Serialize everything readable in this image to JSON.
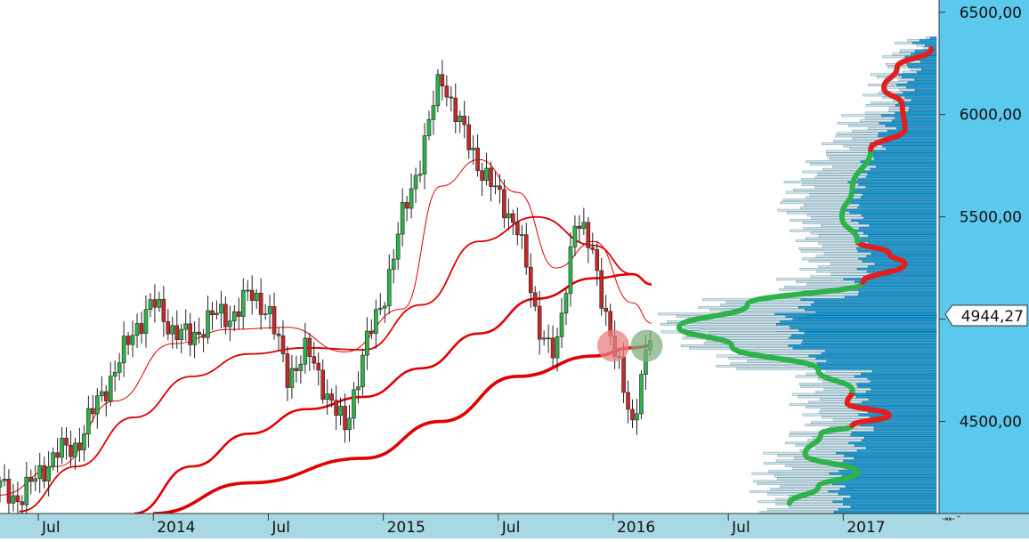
{
  "chart_data": {
    "type": "candlestick",
    "instrument_last_value": "4944,27",
    "y_axis": {
      "tick_labels": [
        "6500,00",
        "6000,00",
        "5500,00",
        "5000,00",
        "4500,00"
      ],
      "ticks": [
        6500,
        6000,
        5500,
        5000,
        4500
      ],
      "ylim": [
        4050,
        6560
      ],
      "last_value": 4944.27
    },
    "x_axis": {
      "tick_labels": [
        "Jul",
        "2014",
        "Jul",
        "2015",
        "Jul",
        "2016",
        "Jul",
        "2017"
      ],
      "ticks": [
        "2013-07",
        "2014-01",
        "2014-07",
        "2015-01",
        "2015-07",
        "2016-01",
        "2016-07",
        "2017-01"
      ],
      "xlim": [
        "2013-05",
        "2017-06"
      ]
    },
    "weekly_close_path": [
      [
        "2013-05",
        4180
      ],
      [
        "2013-06",
        4120
      ],
      [
        "2013-07",
        4240
      ],
      [
        "2013-08",
        4350
      ],
      [
        "2013-09",
        4380
      ],
      [
        "2013-10",
        4580
      ],
      [
        "2013-11",
        4750
      ],
      [
        "2013-12",
        4950
      ],
      [
        "2014-01",
        5080
      ],
      [
        "2014-02",
        4950
      ],
      [
        "2014-03",
        4900
      ],
      [
        "2014-04",
        5020
      ],
      [
        "2014-05",
        5010
      ],
      [
        "2014-06",
        5120
      ],
      [
        "2014-07",
        5050
      ],
      [
        "2014-08",
        4720
      ],
      [
        "2014-09",
        4850
      ],
      [
        "2014-10",
        4650
      ],
      [
        "2014-11",
        4460
      ],
      [
        "2014-12",
        4850
      ],
      [
        "2015-01",
        5100
      ],
      [
        "2015-02",
        5500
      ],
      [
        "2015-03",
        5800
      ],
      [
        "2015-04",
        6200
      ],
      [
        "2015-05",
        5950
      ],
      [
        "2015-06",
        5750
      ],
      [
        "2015-07",
        5600
      ],
      [
        "2015-08",
        5450
      ],
      [
        "2015-09",
        5000
      ],
      [
        "2015-10",
        4800
      ],
      [
        "2015-11",
        5500
      ],
      [
        "2015-12",
        5300
      ],
      [
        "2016-01",
        4850
      ],
      [
        "2016-02",
        4500
      ],
      [
        "2016-03",
        4944
      ]
    ],
    "moving_averages": [
      {
        "period": "thin",
        "color": "#e00000",
        "values": [
          [
            "2013-05",
            4140
          ],
          [
            "2013-08",
            4280
          ],
          [
            "2013-11",
            4600
          ],
          [
            "2014-02",
            4880
          ],
          [
            "2014-05",
            4950
          ],
          [
            "2014-08",
            4960
          ],
          [
            "2014-11",
            4840
          ],
          [
            "2015-02",
            5050
          ],
          [
            "2015-04",
            5650
          ],
          [
            "2015-06",
            5780
          ],
          [
            "2015-08",
            5620
          ],
          [
            "2015-10",
            5250
          ],
          [
            "2015-12",
            5380
          ],
          [
            "2016-02",
            5080
          ],
          [
            "2016-03",
            4980
          ]
        ]
      },
      {
        "period": "medium",
        "color": "#e00000",
        "values": [
          [
            "2013-06",
            4060
          ],
          [
            "2013-09",
            4280
          ],
          [
            "2013-12",
            4520
          ],
          [
            "2014-03",
            4720
          ],
          [
            "2014-06",
            4830
          ],
          [
            "2014-09",
            4860
          ],
          [
            "2014-12",
            4850
          ],
          [
            "2015-03",
            5070
          ],
          [
            "2015-06",
            5380
          ],
          [
            "2015-09",
            5500
          ],
          [
            "2015-12",
            5360
          ],
          [
            "2016-02",
            5220
          ],
          [
            "2016-03",
            5170
          ]
        ]
      },
      {
        "period": "long",
        "color": "#e00000",
        "values": [
          [
            "2013-12",
            4050
          ],
          [
            "2014-03",
            4280
          ],
          [
            "2014-06",
            4440
          ],
          [
            "2014-09",
            4560
          ],
          [
            "2014-12",
            4620
          ],
          [
            "2015-03",
            4760
          ],
          [
            "2015-06",
            4930
          ],
          [
            "2015-09",
            5100
          ],
          [
            "2015-12",
            5200
          ],
          [
            "2016-02",
            5220
          ],
          [
            "2016-03",
            5170
          ]
        ]
      },
      {
        "period": "very-long",
        "color": "#e00000",
        "values": [
          [
            "2014-01",
            4050
          ],
          [
            "2014-06",
            4200
          ],
          [
            "2014-12",
            4320
          ],
          [
            "2015-04",
            4500
          ],
          [
            "2015-08",
            4720
          ],
          [
            "2015-12",
            4820
          ],
          [
            "2016-02",
            4860
          ],
          [
            "2016-03",
            4870
          ]
        ]
      }
    ],
    "markers": [
      {
        "kind": "circle",
        "color": "#e88080",
        "x": "2016-01",
        "y": 4870
      },
      {
        "kind": "circle",
        "color": "#7fb07f",
        "x": "2016-02",
        "y": 4870
      }
    ],
    "volume_profile": {
      "color": "#1a9cd6",
      "light_color": "#cfe6ee",
      "levels": [
        [
          6330,
          0.1
        ],
        [
          6250,
          0.15
        ],
        [
          6150,
          0.2
        ],
        [
          6050,
          0.22
        ],
        [
          5950,
          0.32
        ],
        [
          5850,
          0.38
        ],
        [
          5750,
          0.45
        ],
        [
          5650,
          0.52
        ],
        [
          5550,
          0.55
        ],
        [
          5450,
          0.5
        ],
        [
          5350,
          0.48
        ],
        [
          5250,
          0.46
        ],
        [
          5150,
          0.55
        ],
        [
          5050,
          0.85
        ],
        [
          4980,
          1.0
        ],
        [
          4900,
          0.92
        ],
        [
          4800,
          0.78
        ],
        [
          4700,
          0.48
        ],
        [
          4600,
          0.5
        ],
        [
          4500,
          0.45
        ],
        [
          4400,
          0.52
        ],
        [
          4300,
          0.6
        ],
        [
          4200,
          0.65
        ],
        [
          4100,
          0.62
        ]
      ]
    },
    "profile_curve": [
      {
        "color": "#2db34a",
        "points": [
          [
            4100,
            0.56
          ],
          [
            4180,
            0.45
          ],
          [
            4250,
            0.3
          ],
          [
            4340,
            0.5
          ],
          [
            4440,
            0.44
          ],
          [
            4480,
            0.32
          ]
        ]
      },
      {
        "color": "#e02020",
        "points": [
          [
            4480,
            0.32
          ],
          [
            4530,
            0.18
          ],
          [
            4590,
            0.34
          ],
          [
            4650,
            0.32
          ]
        ]
      },
      {
        "color": "#2db34a",
        "points": [
          [
            4650,
            0.32
          ],
          [
            4750,
            0.45
          ],
          [
            4870,
            0.78
          ],
          [
            4960,
            0.98
          ],
          [
            5070,
            0.72
          ],
          [
            5180,
            0.28
          ]
        ]
      },
      {
        "color": "#e02020",
        "points": [
          [
            5180,
            0.28
          ],
          [
            5270,
            0.12
          ],
          [
            5320,
            0.18
          ],
          [
            5380,
            0.3
          ]
        ]
      },
      {
        "color": "#2db34a",
        "points": [
          [
            5380,
            0.3
          ],
          [
            5500,
            0.36
          ],
          [
            5640,
            0.32
          ],
          [
            5830,
            0.25
          ]
        ]
      },
      {
        "color": "#e02020",
        "points": [
          [
            5830,
            0.25
          ],
          [
            5930,
            0.12
          ],
          [
            6050,
            0.13
          ],
          [
            6130,
            0.2
          ],
          [
            6230,
            0.15
          ],
          [
            6320,
            0.02
          ]
        ]
      }
    ]
  }
}
